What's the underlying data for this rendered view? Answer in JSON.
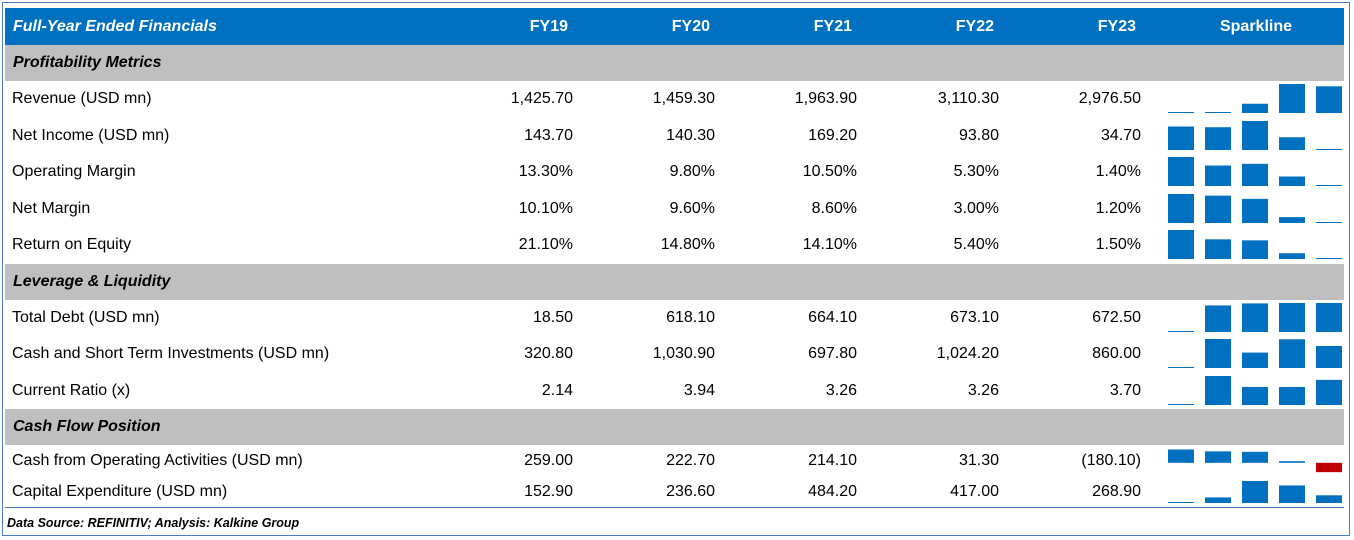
{
  "header": {
    "title": "Full-Year Ended Financials",
    "years": [
      "FY19",
      "FY20",
      "FY21",
      "FY22",
      "FY23"
    ],
    "sparkline": "Sparkline"
  },
  "colors": {
    "header_bg": "#0070c0",
    "section_bg": "#bfbfbf",
    "bar": "#0070c0",
    "negative_bar": "#c00000"
  },
  "sections": [
    {
      "title": "Profitability Metrics",
      "rows": [
        {
          "label": "Revenue (USD mn)",
          "values": [
            "1,425.70",
            "1,459.30",
            "1,963.90",
            "3,110.30",
            "2,976.50"
          ]
        },
        {
          "label": "Net Income (USD mn)",
          "values": [
            "143.70",
            "140.30",
            "169.20",
            "93.80",
            "34.70"
          ]
        },
        {
          "label": "Operating Margin",
          "values": [
            "13.30%",
            "9.80%",
            "10.50%",
            "5.30%",
            "1.40%"
          ]
        },
        {
          "label": "Net Margin",
          "values": [
            "10.10%",
            "9.60%",
            "8.60%",
            "3.00%",
            "1.20%"
          ]
        },
        {
          "label": "Return on Equity",
          "values": [
            "21.10%",
            "14.80%",
            "14.10%",
            "5.40%",
            "1.50%"
          ]
        }
      ]
    },
    {
      "title": "Leverage & Liquidity",
      "rows": [
        {
          "label": "Total Debt (USD mn)",
          "values": [
            "18.50",
            "618.10",
            "664.10",
            "673.10",
            "672.50"
          ]
        },
        {
          "label": "Cash and Short Term Investments (USD mn)",
          "values": [
            "320.80",
            "1,030.90",
            "697.80",
            "1,024.20",
            "860.00"
          ]
        },
        {
          "label": "Current Ratio (x)",
          "values": [
            "2.14",
            "3.94",
            "3.26",
            "3.26",
            "3.70"
          ]
        }
      ]
    },
    {
      "title": "Cash Flow Position",
      "rows": [
        {
          "label": "Cash from Operating Activities (USD mn)",
          "values": [
            "259.00",
            "222.70",
            "214.10",
            "31.30",
            "(180.10)"
          ]
        },
        {
          "label": "Capital Expenditure (USD mn)",
          "values": [
            "152.90",
            "236.60",
            "484.20",
            "417.00",
            "268.90"
          ]
        }
      ]
    }
  ],
  "footer": "Data Source: REFINITIV; Analysis: Kalkine Group",
  "chart_data": {
    "type": "table",
    "categories": [
      "FY19",
      "FY20",
      "FY21",
      "FY22",
      "FY23"
    ],
    "series": [
      {
        "name": "Revenue (USD mn)",
        "values": [
          1425.7,
          1459.3,
          1963.9,
          3110.3,
          2976.5
        ]
      },
      {
        "name": "Net Income (USD mn)",
        "values": [
          143.7,
          140.3,
          169.2,
          93.8,
          34.7
        ]
      },
      {
        "name": "Operating Margin",
        "values": [
          13.3,
          9.8,
          10.5,
          5.3,
          1.4
        ]
      },
      {
        "name": "Net Margin",
        "values": [
          10.1,
          9.6,
          8.6,
          3.0,
          1.2
        ]
      },
      {
        "name": "Return on Equity",
        "values": [
          21.1,
          14.8,
          14.1,
          5.4,
          1.5
        ]
      },
      {
        "name": "Total Debt (USD mn)",
        "values": [
          18.5,
          618.1,
          664.1,
          673.1,
          672.5
        ]
      },
      {
        "name": "Cash and Short Term Investments (USD mn)",
        "values": [
          320.8,
          1030.9,
          697.8,
          1024.2,
          860.0
        ]
      },
      {
        "name": "Current Ratio (x)",
        "values": [
          2.14,
          3.94,
          3.26,
          3.26,
          3.7
        ]
      },
      {
        "name": "Cash from Operating Activities (USD mn)",
        "values": [
          259.0,
          222.7,
          214.1,
          31.3,
          -180.1
        ]
      },
      {
        "name": "Capital Expenditure (USD mn)",
        "values": [
          152.9,
          236.6,
          484.2,
          417.0,
          268.9
        ]
      }
    ]
  }
}
